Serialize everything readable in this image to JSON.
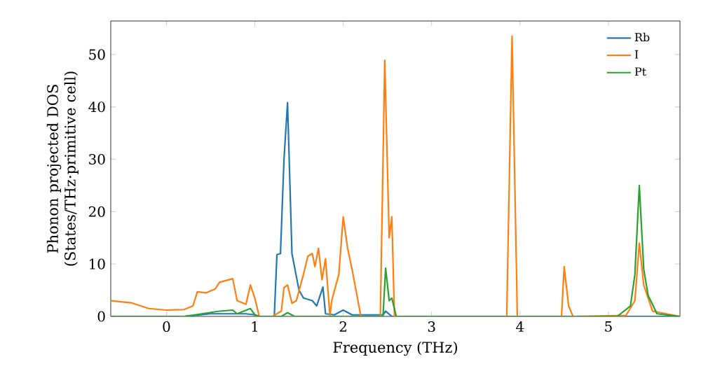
{
  "chart_data": {
    "type": "line",
    "xlabel": "Frequency (THz)",
    "ylabel": "Phonon projected DOS (States/THz·primitive cell)",
    "xlim": [
      -0.63,
      5.81
    ],
    "ylim": [
      0,
      56.4
    ],
    "xticks": [
      0,
      1,
      2,
      3,
      4,
      5
    ],
    "yticks": [
      0,
      10,
      20,
      30,
      40,
      50
    ],
    "grid": false,
    "legend": "top right",
    "series": [
      {
        "name": "Rb",
        "color": "#1f77b4",
        "x": [
          -0.63,
          0.2,
          0.5,
          0.9,
          1.0,
          1.05,
          1.22,
          1.25,
          1.29,
          1.33,
          1.37,
          1.42,
          1.5,
          1.55,
          1.65,
          1.7,
          1.77,
          1.8,
          1.9,
          2.0,
          2.1,
          2.45,
          2.48,
          2.55,
          5.81
        ],
        "values": [
          0,
          0,
          0.5,
          0.5,
          0.3,
          0,
          0,
          11.8,
          12,
          30,
          40.8,
          12,
          5,
          3.5,
          3,
          2,
          5.6,
          0.5,
          0.3,
          1.2,
          0.3,
          0.3,
          1,
          0,
          0
        ]
      },
      {
        "name": "I",
        "color": "#ff7f0e",
        "x": [
          -0.63,
          -0.4,
          -0.2,
          0,
          0.2,
          0.3,
          0.35,
          0.45,
          0.55,
          0.6,
          0.75,
          0.8,
          0.9,
          0.95,
          1.0,
          1.05,
          1.2,
          1.3,
          1.33,
          1.37,
          1.42,
          1.47,
          1.55,
          1.6,
          1.65,
          1.68,
          1.72,
          1.76,
          1.8,
          1.85,
          1.87,
          1.95,
          2.0,
          2.05,
          2.1,
          2.2,
          2.42,
          2.47,
          2.52,
          2.55,
          2.58,
          3.85,
          3.91,
          3.97,
          4.47,
          4.5,
          4.55,
          4.6,
          5.2,
          5.3,
          5.35,
          5.4,
          5.5,
          5.81
        ],
        "values": [
          3,
          2.6,
          1.5,
          1.2,
          1.3,
          2,
          4.7,
          4.5,
          5.2,
          6.5,
          7.2,
          3,
          2.3,
          6,
          3.5,
          0,
          0,
          1,
          5.5,
          6,
          2.5,
          3,
          8,
          11.5,
          12,
          9.5,
          13,
          7,
          11,
          0,
          3,
          8,
          19,
          13,
          9,
          0,
          0,
          48.9,
          15,
          19,
          0,
          0,
          53.5,
          0,
          0,
          9.5,
          2,
          0,
          0.2,
          3,
          14,
          6,
          1,
          0
        ]
      },
      {
        "name": "Pt",
        "color": "#2ca02c",
        "x": [
          -0.63,
          0.2,
          0.6,
          0.75,
          0.8,
          0.95,
          1.0,
          1.05,
          1.3,
          1.37,
          1.45,
          2.45,
          2.48,
          2.52,
          2.55,
          2.6,
          5.1,
          5.25,
          5.3,
          5.35,
          5.4,
          5.45,
          5.55,
          5.81
        ],
        "values": [
          0,
          0,
          1,
          1.2,
          0.5,
          1.5,
          0.3,
          0,
          0,
          0.7,
          0,
          0,
          9.2,
          3,
          3.5,
          0,
          0,
          2,
          8,
          25,
          9,
          4,
          0.5,
          0
        ]
      }
    ]
  }
}
